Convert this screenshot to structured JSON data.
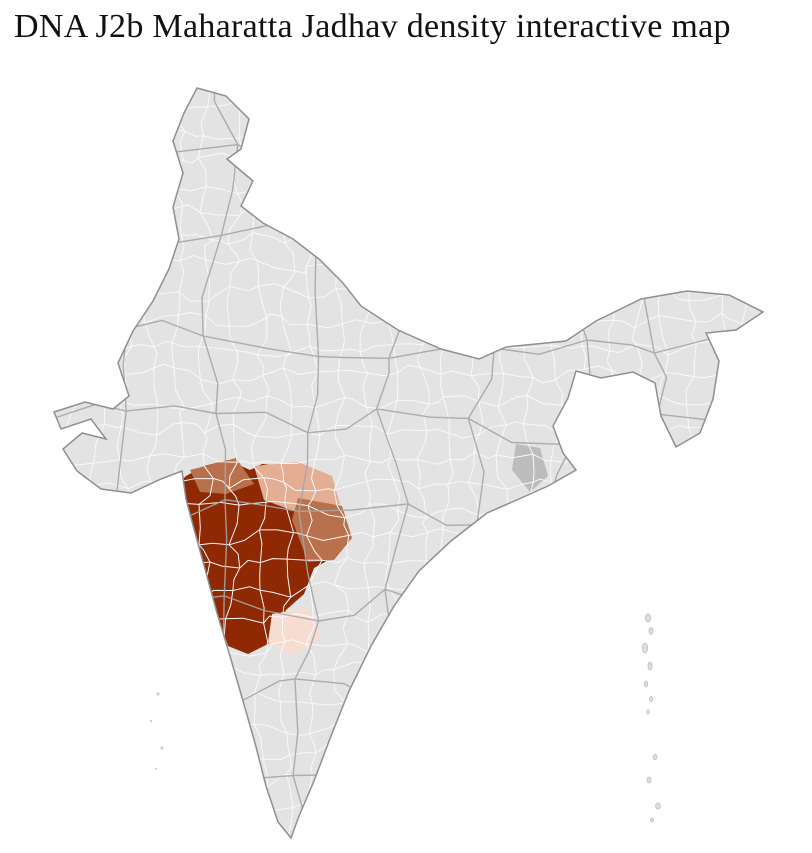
{
  "page": {
    "title": "DNA J2b Maharatta Jadhav density interactive map"
  },
  "map": {
    "base_fill": "#e3e3e3",
    "district_border_color": "#f8f8f8",
    "state_border_color": "#a5a5a5",
    "outline_color": "#8f8f8f",
    "shaded_gray": "#bcbcbc",
    "density_levels": [
      {
        "level": "high",
        "color": "#8e2903"
      },
      {
        "level": "medium",
        "color": "#b9704c"
      },
      {
        "level": "low",
        "color": "#e3ae94"
      },
      {
        "level": "very_low",
        "color": "#f7ddd1"
      }
    ]
  }
}
